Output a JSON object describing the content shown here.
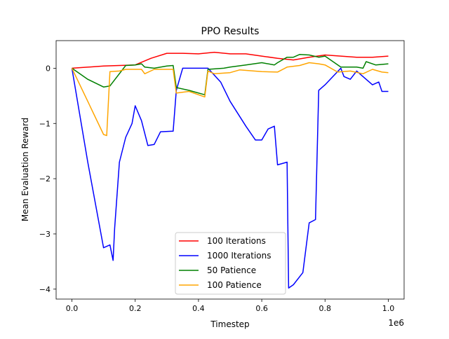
{
  "chart_data": {
    "type": "line",
    "title": "PPO Results",
    "xlabel": "Timestep",
    "ylabel": "Mean Evaluation Reward",
    "x_offset_label": "1e6",
    "xlim": [
      -0.05,
      1.05
    ],
    "ylim": [
      -4.18,
      0.5
    ],
    "xticks": [
      0.0,
      0.2,
      0.4,
      0.6,
      0.8,
      1.0
    ],
    "xtick_labels": [
      "0.0",
      "0.2",
      "0.4",
      "0.6",
      "0.8",
      "1.0"
    ],
    "yticks": [
      0,
      -1,
      -2,
      -3,
      -4
    ],
    "ytick_labels": [
      "0",
      "−1",
      "−2",
      "−3",
      "−4"
    ],
    "grid": false,
    "legend_position": "bottom-center",
    "series": [
      {
        "name": "100 Iterations",
        "color": "#ff0000",
        "points": [
          [
            0,
            0
          ],
          [
            0.1,
            0.04
          ],
          [
            0.2,
            0.06
          ],
          [
            0.25,
            0.18
          ],
          [
            0.3,
            0.27
          ],
          [
            0.35,
            0.27
          ],
          [
            0.4,
            0.26
          ],
          [
            0.45,
            0.29
          ],
          [
            0.5,
            0.26
          ],
          [
            0.55,
            0.26
          ],
          [
            0.6,
            0.22
          ],
          [
            0.65,
            0.18
          ],
          [
            0.7,
            0.15
          ],
          [
            0.75,
            0.2
          ],
          [
            0.8,
            0.24
          ],
          [
            0.85,
            0.22
          ],
          [
            0.9,
            0.2
          ],
          [
            0.95,
            0.2
          ],
          [
            1.0,
            0.22
          ]
        ]
      },
      {
        "name": "1000 Iterations",
        "color": "#0000ff",
        "points": [
          [
            0,
            0
          ],
          [
            0.05,
            -1.7
          ],
          [
            0.1,
            -3.25
          ],
          [
            0.12,
            -3.2
          ],
          [
            0.13,
            -3.48
          ],
          [
            0.135,
            -2.9
          ],
          [
            0.15,
            -1.7
          ],
          [
            0.17,
            -1.25
          ],
          [
            0.19,
            -1.0
          ],
          [
            0.2,
            -0.68
          ],
          [
            0.22,
            -0.95
          ],
          [
            0.24,
            -1.4
          ],
          [
            0.26,
            -1.38
          ],
          [
            0.28,
            -1.15
          ],
          [
            0.32,
            -1.14
          ],
          [
            0.33,
            -0.4
          ],
          [
            0.35,
            0.0
          ],
          [
            0.43,
            0.0
          ],
          [
            0.47,
            -0.25
          ],
          [
            0.5,
            -0.6
          ],
          [
            0.55,
            -1.05
          ],
          [
            0.58,
            -1.3
          ],
          [
            0.6,
            -1.3
          ],
          [
            0.62,
            -1.1
          ],
          [
            0.64,
            -1.05
          ],
          [
            0.65,
            -1.75
          ],
          [
            0.68,
            -1.7
          ],
          [
            0.685,
            -3.98
          ],
          [
            0.7,
            -3.92
          ],
          [
            0.73,
            -3.7
          ],
          [
            0.75,
            -2.8
          ],
          [
            0.77,
            -2.74
          ],
          [
            0.78,
            -0.4
          ],
          [
            0.8,
            -0.3
          ],
          [
            0.85,
            0.0
          ],
          [
            0.86,
            -0.15
          ],
          [
            0.88,
            -0.2
          ],
          [
            0.9,
            -0.05
          ],
          [
            0.92,
            -0.15
          ],
          [
            0.95,
            -0.3
          ],
          [
            0.97,
            -0.25
          ],
          [
            0.98,
            -0.42
          ],
          [
            1.0,
            -0.42
          ]
        ]
      },
      {
        "name": "50 Patience",
        "color": "#008000",
        "points": [
          [
            0,
            0
          ],
          [
            0.05,
            -0.2
          ],
          [
            0.1,
            -0.34
          ],
          [
            0.12,
            -0.32
          ],
          [
            0.17,
            0.05
          ],
          [
            0.2,
            0.06
          ],
          [
            0.22,
            0.08
          ],
          [
            0.23,
            0.02
          ],
          [
            0.26,
            0.0
          ],
          [
            0.3,
            0.04
          ],
          [
            0.32,
            0.05
          ],
          [
            0.33,
            -0.35
          ],
          [
            0.37,
            -0.4
          ],
          [
            0.42,
            -0.48
          ],
          [
            0.43,
            -0.02
          ],
          [
            0.48,
            0.0
          ],
          [
            0.5,
            0.02
          ],
          [
            0.55,
            0.06
          ],
          [
            0.6,
            0.1
          ],
          [
            0.64,
            0.06
          ],
          [
            0.65,
            0.1
          ],
          [
            0.68,
            0.2
          ],
          [
            0.7,
            0.2
          ],
          [
            0.72,
            0.25
          ],
          [
            0.75,
            0.24
          ],
          [
            0.78,
            0.2
          ],
          [
            0.8,
            0.22
          ],
          [
            0.85,
            0.02
          ],
          [
            0.9,
            0.02
          ],
          [
            0.92,
            0.0
          ],
          [
            0.93,
            0.12
          ],
          [
            0.96,
            0.06
          ],
          [
            1.0,
            0.08
          ]
        ]
      },
      {
        "name": "100 Patience",
        "color": "#ffa500",
        "points": [
          [
            0,
            0
          ],
          [
            0.05,
            -0.6
          ],
          [
            0.1,
            -1.2
          ],
          [
            0.11,
            -1.22
          ],
          [
            0.12,
            -0.06
          ],
          [
            0.15,
            -0.05
          ],
          [
            0.17,
            -0.02
          ],
          [
            0.22,
            -0.02
          ],
          [
            0.23,
            -0.1
          ],
          [
            0.26,
            -0.02
          ],
          [
            0.32,
            -0.02
          ],
          [
            0.33,
            -0.45
          ],
          [
            0.37,
            -0.42
          ],
          [
            0.42,
            -0.52
          ],
          [
            0.43,
            -0.05
          ],
          [
            0.45,
            -0.1
          ],
          [
            0.5,
            -0.08
          ],
          [
            0.53,
            -0.03
          ],
          [
            0.6,
            -0.06
          ],
          [
            0.65,
            -0.07
          ],
          [
            0.68,
            0.02
          ],
          [
            0.72,
            0.05
          ],
          [
            0.75,
            0.1
          ],
          [
            0.78,
            0.08
          ],
          [
            0.8,
            0.06
          ],
          [
            0.84,
            -0.07
          ],
          [
            0.88,
            -0.05
          ],
          [
            0.92,
            -0.1
          ],
          [
            0.95,
            -0.02
          ],
          [
            0.98,
            -0.07
          ],
          [
            1.0,
            -0.08
          ]
        ]
      }
    ]
  }
}
